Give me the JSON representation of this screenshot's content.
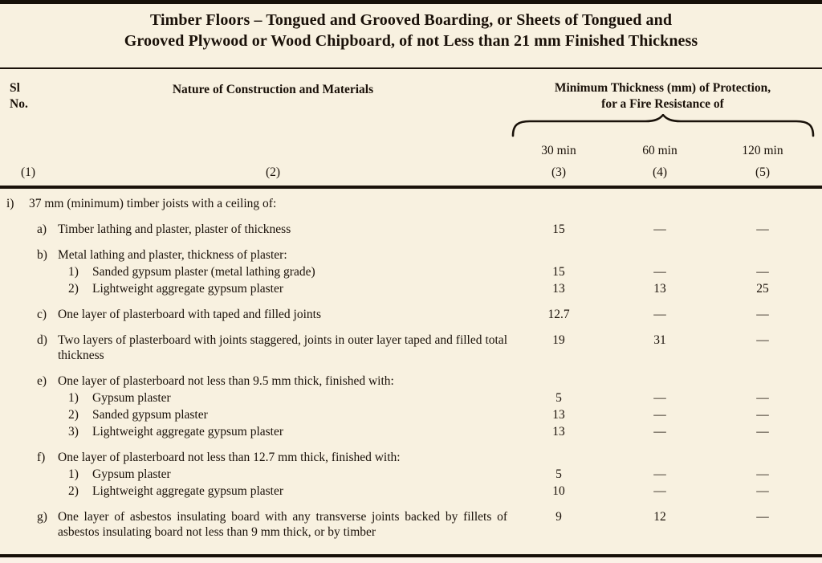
{
  "title": {
    "line1": "Timber Floors – Tongued and Grooved Boarding, or Sheets of Tongued and",
    "line2": "Grooved Plywood or Wood Chipboard, of not Less than 21 mm Finished Thickness"
  },
  "table": {
    "header": {
      "sl_no_line1": "Sl",
      "sl_no_line2": "No.",
      "nature": "Nature of Construction and Materials",
      "group_line1": "Minimum Thickness (mm) of Protection,",
      "group_line2": "for a Fire Resistance of",
      "sub_cols": [
        "30 min",
        "60 min",
        "120 min"
      ],
      "col_nums": [
        "(1)",
        "(2)",
        "(3)",
        "(4)",
        "(5)"
      ]
    },
    "rows": [
      {
        "label": "i)",
        "indent": 0,
        "spacing": "first",
        "justify": false,
        "text": "37 mm (minimum) timber joists with a ceiling of:",
        "values": [
          "",
          "",
          ""
        ]
      },
      {
        "label": "a)",
        "indent": 1,
        "spacing": "lg",
        "justify": false,
        "text": "Timber lathing and plaster, plaster of thickness",
        "values": [
          "15",
          "—",
          "—"
        ]
      },
      {
        "label": "b)",
        "indent": 1,
        "spacing": "lg",
        "justify": false,
        "text": "Metal lathing and plaster, thickness of plaster:",
        "values": [
          "",
          "",
          ""
        ]
      },
      {
        "label": "1)",
        "indent": 2,
        "spacing": "sm",
        "justify": false,
        "text": "Sanded gypsum plaster (metal lathing grade)",
        "values": [
          "15",
          "—",
          "—"
        ]
      },
      {
        "label": "2)",
        "indent": 2,
        "spacing": "sm",
        "justify": false,
        "text": "Lightweight aggregate gypsum plaster",
        "values": [
          "13",
          "13",
          "25"
        ]
      },
      {
        "label": "c)",
        "indent": 1,
        "spacing": "lg",
        "justify": false,
        "text": "One layer of plasterboard with taped and filled joints",
        "values": [
          "12.7",
          "—",
          "—"
        ]
      },
      {
        "label": "d)",
        "indent": 1,
        "spacing": "lg",
        "justify": true,
        "text": "Two layers of plasterboard with joints staggered, joints in outer layer taped and filled total thickness",
        "values": [
          "19",
          "31",
          "—"
        ]
      },
      {
        "label": "e)",
        "indent": 1,
        "spacing": "lg",
        "justify": false,
        "text": "One layer of plasterboard not less than 9.5 mm thick, finished with:",
        "values": [
          "",
          "",
          ""
        ]
      },
      {
        "label": "1)",
        "indent": 2,
        "spacing": "sm",
        "justify": false,
        "text": "Gypsum plaster",
        "values": [
          "5",
          "—",
          "—"
        ]
      },
      {
        "label": "2)",
        "indent": 2,
        "spacing": "sm",
        "justify": false,
        "text": "Sanded gypsum plaster",
        "values": [
          "13",
          "—",
          "—"
        ]
      },
      {
        "label": "3)",
        "indent": 2,
        "spacing": "sm",
        "justify": false,
        "text": "Lightweight aggregate gypsum plaster",
        "values": [
          "13",
          "—",
          "—"
        ]
      },
      {
        "label": "f)",
        "indent": 1,
        "spacing": "lg",
        "justify": false,
        "text": "One layer of plasterboard not less than 12.7 mm thick, finished with:",
        "values": [
          "",
          "",
          ""
        ]
      },
      {
        "label": "1)",
        "indent": 2,
        "spacing": "sm",
        "justify": false,
        "text": "Gypsum plaster",
        "values": [
          "5",
          "—",
          "—"
        ]
      },
      {
        "label": "2)",
        "indent": 2,
        "spacing": "sm",
        "justify": false,
        "text": "Lightweight aggregate gypsum plaster",
        "values": [
          "10",
          "—",
          "—"
        ]
      },
      {
        "label": "g)",
        "indent": 1,
        "spacing": "lg",
        "justify": true,
        "text": "One layer of asbestos insulating board with any transverse joints backed by fillets of asbestos insulating board not less than 9 mm thick, or by timber",
        "values": [
          "9",
          "12",
          "—"
        ]
      }
    ]
  }
}
